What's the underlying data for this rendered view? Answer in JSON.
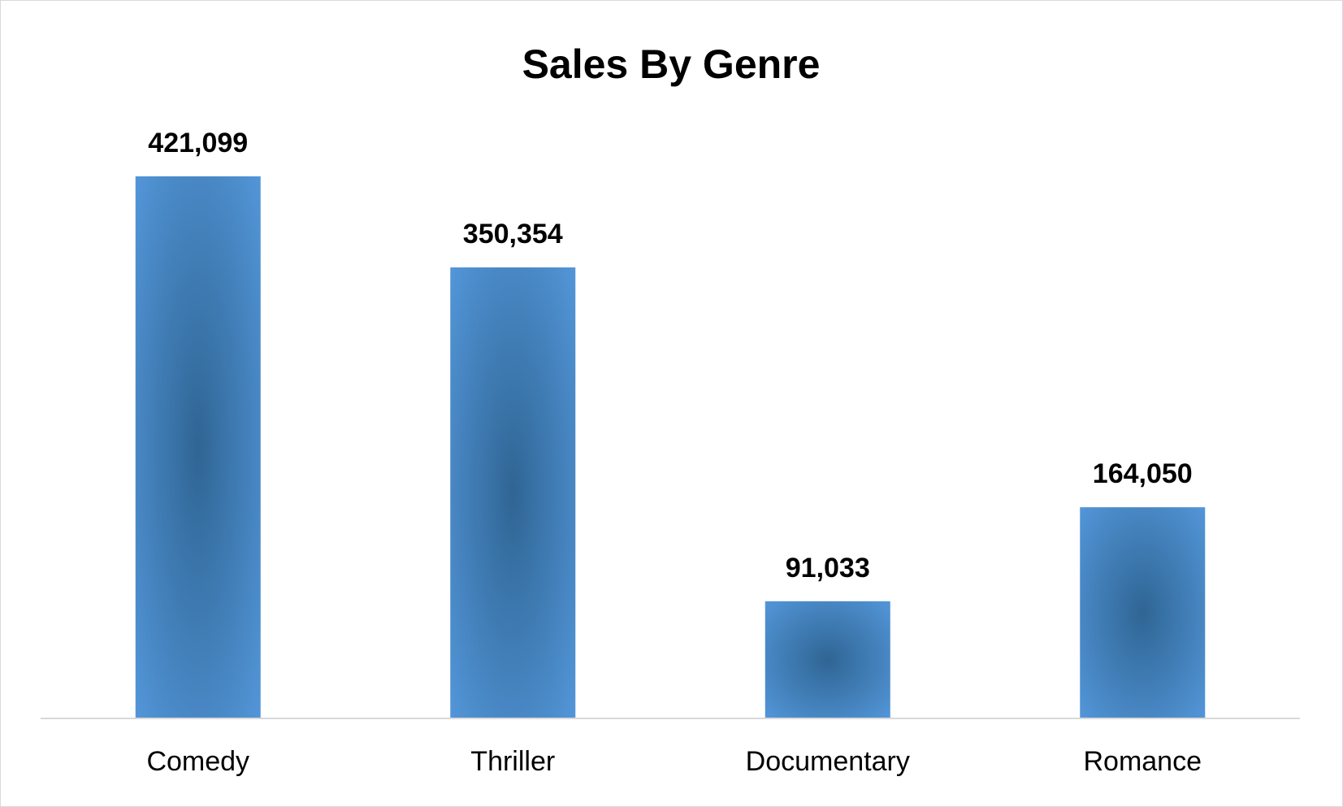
{
  "chart_data": {
    "type": "bar",
    "title": "Sales By Genre",
    "xlabel": "",
    "ylabel": "",
    "categories": [
      "Comedy",
      "Thriller",
      "Documentary",
      "Romance"
    ],
    "values": [
      421099,
      350354,
      91033,
      164050
    ],
    "data_labels": [
      "421,099",
      "350,354",
      "91,033",
      "164,050"
    ],
    "ylim": [
      0,
      421099
    ],
    "grid": false,
    "legend": "none",
    "colors": {
      "bar_light": "#5599dd",
      "bar_dark": "#2f6594",
      "axis": "#d9d9d9",
      "text": "#000000"
    }
  }
}
